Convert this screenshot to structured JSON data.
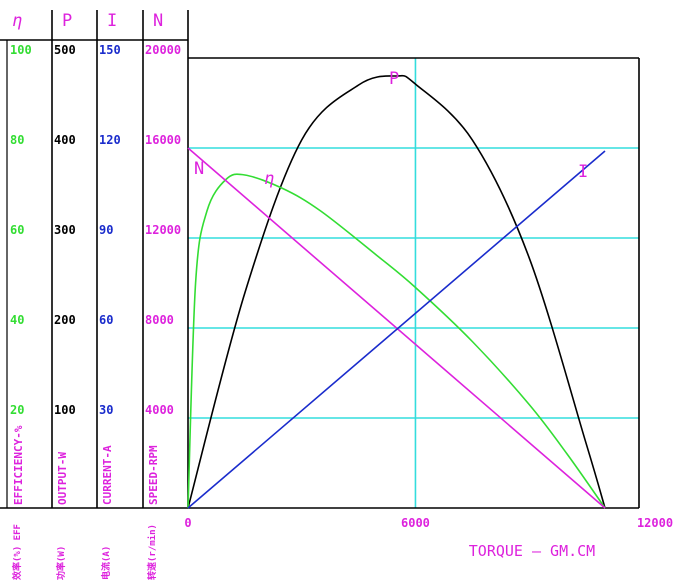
{
  "chart_data": {
    "type": "line",
    "xlabel": "TORQUE  —  GM.CM",
    "x_ticks": [
      0,
      6000,
      12000
    ],
    "xlim": [
      0,
      12000
    ],
    "colors": {
      "efficiency": "#33dd33",
      "output": "#000000",
      "current": "#1a2ccc",
      "speed": "#dd22dd",
      "grid": "#33dddd",
      "frame": "#000000"
    },
    "axes": [
      {
        "key": "efficiency",
        "symbol": "η",
        "label": "EFFICIENCY-%",
        "cn_label": "效率(%) EFF",
        "ticks": [
          20,
          40,
          60,
          80,
          100
        ],
        "range": [
          0,
          100
        ]
      },
      {
        "key": "output",
        "symbol": "P",
        "label": "OUTPUT-W",
        "cn_label": "功率(W)",
        "ticks": [
          100,
          200,
          300,
          400,
          500
        ],
        "range": [
          0,
          500
        ]
      },
      {
        "key": "current",
        "symbol": "I",
        "label": "CURRENT-A",
        "cn_label": "电流(A)",
        "ticks": [
          30,
          60,
          90,
          120,
          150
        ],
        "range": [
          0,
          150
        ]
      },
      {
        "key": "speed",
        "symbol": "N",
        "label": "SPEED-RPM",
        "cn_label": "转速(r/min)",
        "ticks": [
          4000,
          8000,
          12000,
          16000,
          20000
        ],
        "range": [
          0,
          20000
        ]
      }
    ],
    "series": [
      {
        "name": "P",
        "axis": "output",
        "x": [
          0,
          1500,
          3000,
          4500,
          5500,
          6000,
          7500,
          9000,
          10500,
          11000
        ],
        "y": [
          0,
          239,
          409,
          470,
          480,
          471,
          409,
          278,
          72,
          0
        ]
      },
      {
        "name": "η",
        "axis": "efficiency",
        "x": [
          0,
          200,
          500,
          1000,
          1500,
          2500,
          3500,
          5000,
          6000,
          7500,
          9000,
          10000,
          11000
        ],
        "y": [
          0,
          50,
          66,
          73,
          74,
          71,
          66,
          56,
          49,
          37,
          23,
          12,
          0
        ]
      },
      {
        "name": "N",
        "axis": "speed",
        "x": [
          0,
          11000
        ],
        "y": [
          16000,
          0
        ]
      },
      {
        "name": "I",
        "axis": "current",
        "x": [
          0,
          11000
        ],
        "y": [
          0,
          119
        ]
      }
    ]
  }
}
